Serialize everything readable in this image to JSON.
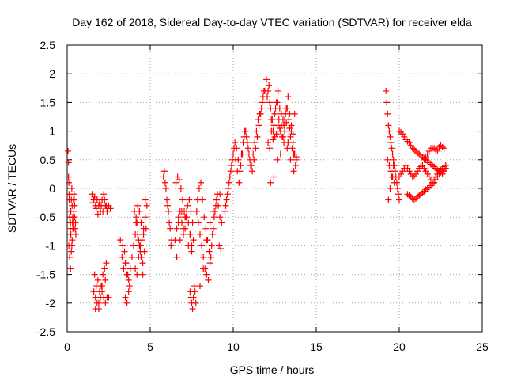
{
  "chart_data": {
    "type": "scatter",
    "title": "Day 162 of 2018, Sidereal Day-to-day VTEC variation (SDTVAR) for receiver elda",
    "xlabel": "GPS time / hours",
    "ylabel": "SDTVAR / TECUs",
    "xlim": [
      0,
      25
    ],
    "ylim": [
      -2.5,
      2.5
    ],
    "xticks": [
      0,
      5,
      10,
      15,
      20,
      25
    ],
    "yticks": [
      -2.5,
      -2,
      -1.5,
      -1,
      -0.5,
      0,
      0.5,
      1,
      1.5,
      2,
      2.5
    ],
    "xtick_labels": [
      "0",
      "5",
      "10",
      "15",
      "20",
      "25"
    ],
    "ytick_labels": [
      "-2.5",
      "-2",
      "-1.5",
      "-1",
      "-0.5",
      "0",
      "0.5",
      "1",
      "1.5",
      "2",
      "2.5"
    ],
    "grid": true,
    "marker": "+",
    "marker_color": "#ff0000",
    "series": [
      {
        "name": "SDTVAR",
        "x": [
          0.05,
          0.08,
          0.1,
          0.12,
          0.15,
          0.18,
          0.2,
          0.22,
          0.25,
          0.28,
          0.3,
          0.33,
          0.35,
          0.38,
          0.4,
          0.42,
          0.45,
          0.48,
          0.5,
          0.52,
          0.1,
          0.15,
          0.2,
          0.25,
          0.3,
          0.35,
          0.4,
          0.45,
          0.08,
          0.12,
          0.18,
          0.22,
          0.28,
          0.32,
          0.38,
          0.42,
          1.5,
          1.6,
          1.7,
          1.8,
          1.9,
          2.0,
          2.1,
          2.2,
          2.3,
          2.4,
          2.5,
          2.6,
          1.55,
          1.65,
          1.75,
          1.85,
          1.95,
          2.05,
          2.15,
          2.25,
          2.35,
          2.45,
          1.6,
          1.7,
          1.8,
          1.9,
          2.0,
          2.1,
          2.2,
          2.3,
          2.4,
          1.65,
          1.75,
          1.85,
          1.95,
          2.05,
          2.15,
          2.25,
          2.35,
          1.7,
          1.9,
          2.1,
          2.3,
          2.5,
          3.2,
          3.3,
          3.4,
          3.5,
          3.6,
          3.7,
          3.8,
          3.9,
          3.35,
          3.45,
          3.55,
          3.65,
          3.75,
          3.5,
          3.6,
          3.7,
          4.0,
          4.1,
          4.2,
          4.3,
          4.4,
          4.5,
          4.6,
          4.7,
          4.8,
          4.05,
          4.15,
          4.25,
          4.35,
          4.45,
          4.55,
          4.65,
          4.75,
          4.1,
          4.2,
          4.3,
          4.4,
          4.5,
          4.6,
          4.7,
          4.15,
          4.25,
          4.35,
          4.45,
          4.55,
          5.8,
          5.9,
          6.0,
          6.1,
          6.2,
          6.3,
          5.85,
          5.95,
          6.05,
          6.15,
          6.25,
          6.5,
          6.6,
          6.7,
          6.8,
          6.9,
          7.0,
          7.1,
          7.2,
          7.3,
          7.4,
          7.5,
          7.6,
          6.55,
          6.65,
          6.75,
          6.85,
          6.95,
          7.05,
          7.15,
          7.25,
          7.35,
          7.45,
          7.55,
          6.6,
          6.8,
          7.0,
          7.2,
          7.4,
          6.7,
          6.9,
          7.1,
          7.3,
          7.5,
          7.4,
          7.45,
          7.5,
          7.55,
          7.6,
          7.65,
          7.7,
          7.75,
          7.8,
          7.9,
          8.0,
          8.1,
          8.2,
          8.3,
          8.4,
          8.5,
          8.6,
          8.7,
          8.8,
          8.9,
          9.0,
          9.1,
          9.2,
          9.3,
          7.85,
          7.95,
          8.05,
          8.15,
          8.25,
          8.35,
          8.45,
          8.55,
          8.65,
          8.75,
          8.85,
          8.95,
          9.05,
          9.15,
          9.25,
          8.0,
          8.2,
          8.4,
          8.6,
          8.8,
          9.0,
          9.2,
          9.5,
          9.6,
          9.7,
          9.8,
          9.9,
          10.0,
          10.1,
          10.2,
          10.3,
          10.4,
          10.5,
          10.6,
          10.7,
          10.8,
          10.9,
          11.0,
          11.1,
          11.2,
          11.3,
          11.4,
          11.5,
          11.6,
          11.7,
          11.8,
          11.9,
          9.55,
          9.65,
          9.75,
          9.85,
          9.95,
          10.05,
          10.15,
          10.25,
          10.35,
          10.45,
          10.55,
          10.65,
          10.75,
          10.85,
          10.95,
          11.05,
          11.15,
          11.25,
          11.35,
          11.45,
          11.55,
          11.65,
          11.75,
          11.85,
          12.0,
          12.1,
          12.2,
          12.3,
          12.4,
          12.5,
          12.6,
          12.7,
          12.8,
          12.9,
          13.0,
          13.1,
          13.2,
          13.3,
          13.4,
          13.5,
          13.6,
          13.7,
          13.8,
          12.05,
          12.15,
          12.25,
          12.35,
          12.45,
          12.55,
          12.65,
          12.75,
          12.85,
          12.95,
          13.05,
          13.15,
          13.25,
          13.35,
          13.45,
          13.55,
          13.65,
          13.75,
          12.1,
          12.3,
          12.5,
          12.7,
          12.9,
          13.1,
          13.3,
          13.5,
          13.7,
          12.2,
          12.4,
          12.6,
          12.8,
          13.0,
          13.2,
          13.4,
          13.6,
          13.8,
          12.25,
          12.45,
          12.65,
          12.85,
          13.05,
          13.25,
          13.45,
          13.65,
          19.2,
          19.25,
          19.3,
          19.35,
          19.4,
          19.45,
          19.5,
          19.55,
          19.6,
          19.65,
          19.7,
          19.75,
          19.8,
          19.85,
          19.9,
          19.95,
          20.0,
          19.3,
          19.4,
          19.5,
          19.6,
          19.7,
          19.35,
          19.45,
          19.55,
          19.65,
          20.0,
          20.2,
          20.4,
          20.6,
          20.8,
          21.0,
          21.2,
          21.4,
          21.6,
          21.8,
          22.0,
          22.2,
          22.4,
          22.6,
          22.8,
          20.1,
          20.3,
          20.5,
          20.7,
          20.9,
          21.1,
          21.3,
          21.5,
          21.7,
          21.9,
          22.1,
          22.3,
          22.5,
          22.7,
          20.0,
          20.2,
          20.4,
          20.6,
          20.8,
          21.0,
          21.2,
          21.4,
          21.6,
          21.8,
          22.0,
          22.2,
          22.4,
          22.6,
          22.8,
          20.1,
          20.3,
          20.5,
          20.7,
          20.9,
          21.1,
          21.3,
          21.5,
          21.7,
          21.9,
          22.1,
          22.3,
          22.5,
          22.7,
          20.5,
          20.7,
          20.9,
          21.1,
          21.3,
          21.5,
          21.7,
          21.9,
          22.1,
          22.3,
          22.5,
          22.7,
          20.6,
          20.8,
          21.0,
          21.2,
          21.4,
          21.6,
          21.8,
          22.0,
          22.2,
          22.4,
          22.6,
          21.5,
          21.7,
          21.9,
          22.1,
          22.3,
          22.5,
          22.7,
          21.6,
          21.8,
          22.0,
          22.2,
          22.4,
          22.6
        ],
        "y": [
          0.65,
          0.45,
          0.1,
          -0.2,
          -0.5,
          -0.7,
          -0.6,
          -0.4,
          -0.2,
          0.0,
          -0.3,
          -0.5,
          -0.7,
          -0.6,
          -0.4,
          -0.2,
          -0.5,
          -0.7,
          -0.6,
          -0.8,
          -1.0,
          -1.2,
          -1.4,
          -1.1,
          -0.9,
          -0.7,
          -0.5,
          -0.3,
          0.2,
          -0.1,
          -0.4,
          -0.8,
          -1.0,
          -0.6,
          -0.2,
          -0.1,
          -0.1,
          -0.2,
          -0.3,
          -0.2,
          -0.3,
          -0.4,
          -0.2,
          -0.1,
          -0.3,
          -0.4,
          -0.3,
          -0.35,
          -0.25,
          -0.15,
          -0.35,
          -0.45,
          -0.25,
          -0.3,
          -0.4,
          -0.2,
          -0.3,
          -0.35,
          -1.8,
          -1.9,
          -2.0,
          -2.1,
          -1.9,
          -1.8,
          -1.9,
          -2.0,
          -1.9,
          -1.5,
          -1.7,
          -1.6,
          -1.8,
          -1.7,
          -1.5,
          -1.4,
          -1.3,
          -2.1,
          -2.0,
          -1.7,
          -1.6,
          -1.9,
          -0.9,
          -1.2,
          -1.4,
          -1.3,
          -1.5,
          -1.6,
          -1.4,
          -1.2,
          -1.0,
          -1.1,
          -1.3,
          -1.5,
          -1.7,
          -1.9,
          -2.0,
          -1.8,
          -1.0,
          -0.8,
          -0.6,
          -0.9,
          -1.1,
          -1.2,
          -0.8,
          -0.5,
          -0.3,
          -0.4,
          -0.6,
          -0.8,
          -1.0,
          -1.2,
          -1.3,
          -1.1,
          -0.7,
          -1.4,
          -1.5,
          -1.2,
          -1.0,
          -0.9,
          -0.7,
          -0.2,
          -0.5,
          -0.3,
          -0.4,
          -0.6,
          -1.5,
          0.2,
          0.1,
          -0.2,
          -0.4,
          -0.7,
          -0.9,
          0.3,
          0.0,
          -0.3,
          -0.6,
          -1.0,
          -0.9,
          -0.7,
          -0.5,
          -0.4,
          -0.6,
          -0.8,
          -0.5,
          -0.4,
          -0.6,
          -0.8,
          -1.0,
          -0.9,
          0.1,
          0.2,
          0.15,
          0.0,
          -0.2,
          -0.4,
          -0.5,
          -0.3,
          -0.2,
          -0.4,
          -0.6,
          -1.2,
          -0.9,
          -0.7,
          -0.5,
          -0.8,
          -0.6,
          -0.4,
          -0.7,
          -1.0,
          -1.1,
          -1.8,
          -1.9,
          -2.0,
          -2.1,
          -1.9,
          -1.7,
          -1.8,
          -2.0,
          -0.4,
          -0.6,
          -0.8,
          -1.0,
          -1.2,
          -1.4,
          -1.5,
          -1.6,
          -1.3,
          -1.0,
          -0.7,
          -0.4,
          -0.2,
          -0.3,
          -0.5,
          -0.6,
          -0.2,
          0.0,
          0.1,
          -0.2,
          -0.5,
          -0.7,
          -0.9,
          -1.1,
          -1.2,
          -0.8,
          -0.5,
          -0.3,
          -0.1,
          -1.0,
          -1.05,
          -1.7,
          -1.4,
          -0.9,
          -0.6,
          -0.4,
          -0.2,
          -0.1,
          -0.4,
          -0.2,
          0.0,
          0.2,
          0.4,
          0.6,
          0.8,
          0.7,
          0.5,
          0.3,
          0.6,
          0.8,
          1.0,
          0.9,
          0.7,
          0.5,
          0.4,
          0.6,
          0.8,
          1.0,
          1.2,
          1.3,
          1.4,
          1.6,
          1.7,
          -0.3,
          -0.1,
          0.1,
          0.3,
          0.5,
          0.7,
          0.5,
          0.3,
          0.1,
          0.4,
          0.6,
          0.9,
          1.0,
          0.8,
          0.6,
          0.4,
          0.3,
          0.5,
          0.7,
          0.9,
          1.1,
          1.3,
          1.5,
          1.7,
          1.9,
          1.7,
          1.5,
          1.2,
          1.0,
          1.3,
          1.5,
          1.7,
          1.4,
          1.1,
          0.9,
          1.2,
          1.4,
          1.6,
          1.3,
          1.0,
          0.8,
          0.6,
          0.5,
          1.6,
          1.8,
          1.4,
          1.2,
          1.1,
          1.4,
          1.5,
          1.2,
          1.0,
          0.9,
          1.1,
          1.3,
          1.4,
          1.2,
          0.9,
          0.7,
          0.6,
          0.4,
          0.8,
          1.0,
          0.9,
          1.1,
          1.3,
          1.0,
          0.8,
          1.1,
          1.3,
          0.7,
          0.85,
          0.95,
          1.05,
          1.2,
          1.15,
          1.05,
          0.95,
          0.55,
          0.1,
          0.2,
          0.5,
          0.6,
          0.8,
          0.7,
          0.5,
          0.3,
          1.7,
          1.5,
          1.3,
          1.1,
          1.0,
          0.9,
          0.8,
          0.7,
          0.6,
          0.5,
          0.4,
          0.3,
          0.2,
          0.1,
          0.0,
          -0.1,
          -0.2,
          0.5,
          0.4,
          0.3,
          0.2,
          0.1,
          -0.2,
          0.0,
          0.2,
          0.4,
          1.0,
          0.95,
          0.85,
          0.8,
          0.7,
          0.65,
          0.6,
          0.55,
          0.5,
          0.45,
          0.4,
          0.35,
          0.3,
          0.35,
          0.4,
          0.98,
          0.9,
          0.82,
          0.75,
          0.68,
          0.62,
          0.58,
          0.52,
          0.48,
          0.42,
          0.38,
          0.32,
          0.32,
          0.38,
          0.2,
          0.3,
          0.4,
          0.3,
          0.2,
          0.25,
          0.35,
          0.4,
          0.3,
          0.2,
          0.1,
          0.2,
          0.3,
          0.25,
          0.35,
          0.25,
          0.35,
          0.35,
          0.25,
          0.22,
          0.3,
          0.38,
          0.35,
          0.25,
          0.15,
          0.15,
          0.25,
          0.28,
          0.3,
          -0.1,
          -0.15,
          -0.2,
          -0.15,
          -0.1,
          -0.05,
          0.0,
          0.05,
          0.1,
          0.2,
          0.3,
          0.35,
          -0.12,
          -0.18,
          -0.18,
          -0.12,
          -0.08,
          -0.02,
          0.02,
          0.08,
          0.15,
          0.25,
          0.32,
          0.5,
          0.6,
          0.7,
          0.7,
          0.65,
          0.75,
          0.7,
          0.55,
          0.65,
          0.7,
          0.68,
          0.72,
          0.72
        ]
      }
    ]
  }
}
